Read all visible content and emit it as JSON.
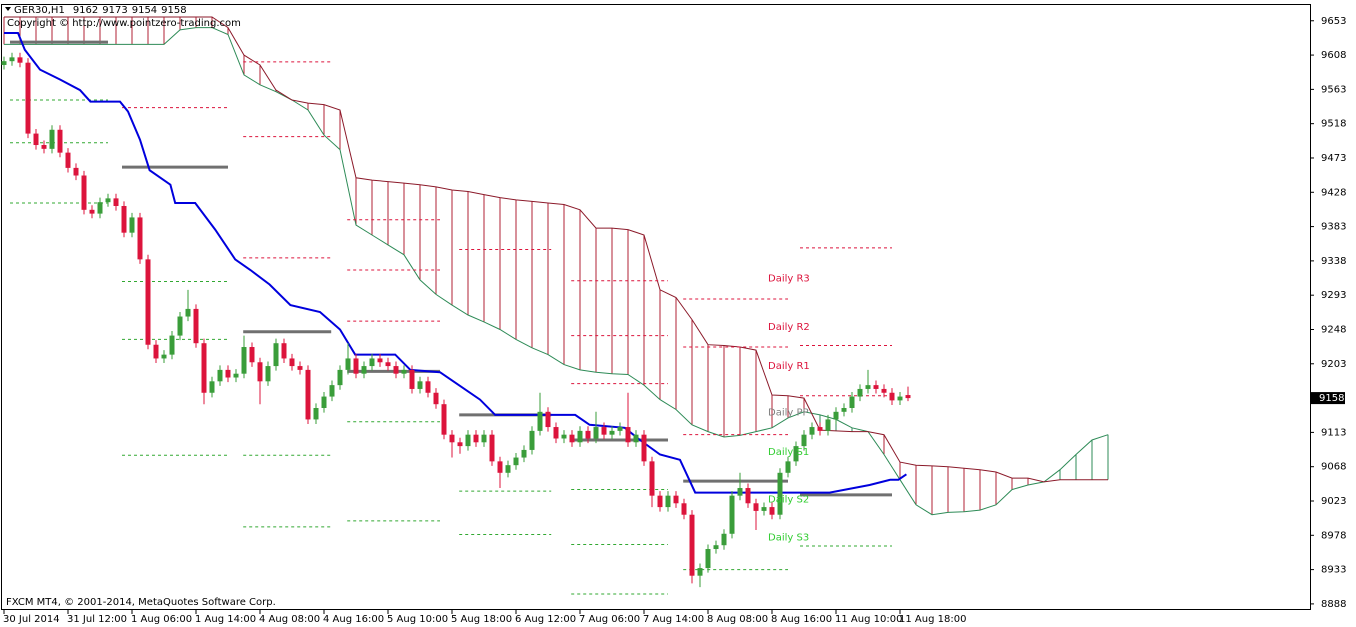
{
  "chart_data": {
    "type": "candlestick",
    "title": "GER30,H1",
    "quote": [
      9162,
      9173,
      9154,
      9158
    ],
    "copyright": "Copyright © http://www.pointzero-trading.com",
    "footer": "FXCM MT4, © 2001-2014, MetaQuotes Software Corp.",
    "price_tag": 9158,
    "ylim": [
      8880,
      9675
    ],
    "yticks": [
      9653,
      9608,
      9563,
      9518,
      9473,
      9428,
      9383,
      9338,
      9293,
      9248,
      9203,
      9113,
      9068,
      9023,
      8978,
      8933,
      8888
    ],
    "xlim": [
      -0.5,
      163.25
    ],
    "xticks": [
      {
        "value": 0,
        "label": "30 Jul 2014"
      },
      {
        "value": 8,
        "label": "31 Jul 12:00"
      },
      {
        "value": 16,
        "label": "1 Aug 06:00"
      },
      {
        "value": 24,
        "label": "1 Aug 14:00"
      },
      {
        "value": 32,
        "label": "4 Aug 08:00"
      },
      {
        "value": 40,
        "label": "4 Aug 16:00"
      },
      {
        "value": 48,
        "label": "5 Aug 10:00"
      },
      {
        "value": 56,
        "label": "5 Aug 18:00"
      },
      {
        "value": 64,
        "label": "6 Aug 12:00"
      },
      {
        "value": 72,
        "label": "7 Aug 06:00"
      },
      {
        "value": 80,
        "label": "7 Aug 14:00"
      },
      {
        "value": 88,
        "label": "8 Aug 08:00"
      },
      {
        "value": 96,
        "label": "8 Aug 16:00"
      },
      {
        "value": 104,
        "label": "11 Aug 10:00"
      },
      {
        "value": 112,
        "label": "11 Aug 18:00"
      }
    ],
    "up_color": "#3a9d3a",
    "down_color": "#dc143c",
    "open": [
      9595,
      9600,
      9605,
      9598,
      9505,
      9490,
      9485,
      9510,
      9480,
      9460,
      9450,
      9405,
      9400,
      9415,
      9420,
      9410,
      9375,
      9395,
      9340,
      9228,
      9210,
      9215,
      9240,
      9265,
      9275,
      9230,
      9165,
      9180,
      9195,
      9185,
      9190,
      9225,
      9205,
      9180,
      9200,
      9230,
      9210,
      9200,
      9195,
      9130,
      9145,
      9160,
      9175,
      9195,
      9210,
      9190,
      9200,
      9210,
      9205,
      9200,
      9190,
      9195,
      9170,
      9180,
      9165,
      9150,
      9110,
      9100,
      9095,
      9110,
      9100,
      9110,
      9075,
      9060,
      9070,
      9080,
      9090,
      9115,
      9140,
      9120,
      9105,
      9110,
      9100,
      9115,
      9105,
      9120,
      9110,
      9115,
      9120,
      9100,
      9110,
      9075,
      9030,
      9015,
      9030,
      9020,
      9005,
      8925,
      8935,
      8960,
      8965,
      8980,
      9030,
      9040,
      9020,
      9010,
      9015,
      9005,
      9060,
      9075,
      9095,
      9110,
      9120,
      9115,
      9130,
      9140,
      9145,
      9160,
      9170,
      9175,
      9170,
      9165,
      9155,
      9162
    ],
    "high": [
      9606,
      9611,
      9611,
      9604,
      9511,
      9496,
      9516,
      9516,
      9486,
      9466,
      9456,
      9411,
      9421,
      9426,
      9426,
      9416,
      9401,
      9401,
      9346,
      9234,
      9221,
      9246,
      9271,
      9300,
      9281,
      9236,
      9186,
      9201,
      9201,
      9196,
      9240,
      9231,
      9211,
      9206,
      9236,
      9236,
      9216,
      9206,
      9201,
      9151,
      9166,
      9181,
      9201,
      9230,
      9216,
      9206,
      9216,
      9216,
      9211,
      9206,
      9201,
      9201,
      9186,
      9186,
      9171,
      9156,
      9116,
      9106,
      9116,
      9116,
      9116,
      9116,
      9081,
      9076,
      9086,
      9096,
      9121,
      9165,
      9146,
      9126,
      9116,
      9116,
      9121,
      9121,
      9140,
      9126,
      9121,
      9126,
      9165,
      9116,
      9116,
      9081,
      9036,
      9036,
      9036,
      9026,
      9011,
      8941,
      8966,
      8971,
      8986,
      9036,
      9060,
      9046,
      9026,
      9021,
      9021,
      9066,
      9081,
      9101,
      9116,
      9126,
      9126,
      9136,
      9146,
      9151,
      9166,
      9176,
      9195,
      9181,
      9176,
      9171,
      9166,
      9173
    ],
    "low": [
      9589,
      9594,
      9592,
      9499,
      9484,
      9479,
      9479,
      9474,
      9454,
      9444,
      9399,
      9394,
      9394,
      9409,
      9404,
      9369,
      9369,
      9334,
      9222,
      9204,
      9204,
      9209,
      9234,
      9259,
      9224,
      9150,
      9159,
      9174,
      9179,
      9179,
      9184,
      9199,
      9150,
      9174,
      9194,
      9204,
      9194,
      9189,
      9124,
      9124,
      9139,
      9154,
      9169,
      9189,
      9184,
      9184,
      9194,
      9199,
      9194,
      9184,
      9184,
      9164,
      9164,
      9159,
      9144,
      9104,
      9080,
      9085,
      9089,
      9094,
      9094,
      9069,
      9040,
      9054,
      9064,
      9074,
      9084,
      9109,
      9114,
      9099,
      9099,
      9094,
      9094,
      9099,
      9099,
      9104,
      9104,
      9109,
      9094,
      9094,
      9069,
      9015,
      9009,
      9009,
      9014,
      8999,
      8915,
      8910,
      8929,
      8954,
      8959,
      8974,
      9024,
      9014,
      8985,
      9004,
      8999,
      8999,
      9054,
      9069,
      9089,
      9104,
      9109,
      9109,
      9124,
      9134,
      9139,
      9154,
      9164,
      9164,
      9159,
      9149,
      9149,
      9154
    ],
    "close": [
      9600,
      9605,
      9598,
      9505,
      9490,
      9485,
      9510,
      9480,
      9460,
      9450,
      9405,
      9400,
      9415,
      9420,
      9410,
      9375,
      9395,
      9340,
      9228,
      9210,
      9215,
      9240,
      9265,
      9275,
      9230,
      9165,
      9180,
      9195,
      9185,
      9190,
      9225,
      9205,
      9180,
      9200,
      9230,
      9210,
      9200,
      9195,
      9130,
      9145,
      9160,
      9175,
      9195,
      9210,
      9190,
      9200,
      9210,
      9205,
      9200,
      9190,
      9195,
      9170,
      9180,
      9165,
      9150,
      9110,
      9100,
      9095,
      9110,
      9100,
      9110,
      9075,
      9060,
      9070,
      9080,
      9090,
      9115,
      9140,
      9120,
      9105,
      9110,
      9100,
      9115,
      9105,
      9120,
      9110,
      9115,
      9120,
      9100,
      9110,
      9075,
      9030,
      9015,
      9030,
      9020,
      9005,
      8925,
      8935,
      8960,
      8965,
      8980,
      9030,
      9040,
      9020,
      9010,
      9015,
      9005,
      9060,
      9075,
      9095,
      9110,
      9120,
      9115,
      9130,
      9140,
      9145,
      9160,
      9170,
      9175,
      9170,
      9165,
      9155,
      9160,
      9158
    ],
    "cloud": {
      "x": [
        0,
        2,
        4,
        6,
        8,
        10,
        12,
        14,
        16,
        18,
        20,
        22,
        24,
        26,
        28,
        30,
        32,
        34,
        36,
        38,
        40,
        42,
        44,
        46,
        48,
        50,
        52,
        54,
        56,
        58,
        60,
        62,
        64,
        66,
        68,
        70,
        72,
        74,
        76,
        78,
        80,
        82,
        84,
        86,
        88,
        90,
        92,
        94,
        96,
        98,
        100,
        102,
        104,
        106,
        108,
        110,
        112,
        114,
        116,
        118,
        120,
        122,
        124,
        126,
        128,
        130,
        132,
        134,
        136,
        138
      ],
      "span_a": [
        9622,
        9622,
        9622,
        9622,
        9622,
        9622,
        9622,
        9622,
        9622,
        9622,
        9622,
        9641,
        9644,
        9644,
        9635,
        9582,
        9569,
        9560,
        9549,
        9536,
        9503,
        9484,
        9385,
        9372,
        9359,
        9346,
        9313,
        9294,
        9280,
        9267,
        9258,
        9248,
        9235,
        9224,
        9215,
        9202,
        9195,
        9192,
        9190,
        9189,
        9175,
        9156,
        9143,
        9123,
        9114,
        9107,
        9109,
        9114,
        9119,
        9132,
        9140,
        9136,
        9130,
        9119,
        9114,
        9084,
        9051,
        9018,
        9005,
        9008,
        9009,
        9011,
        9018,
        9038,
        9044,
        9048,
        9064,
        9084,
        9103,
        9110
      ],
      "span_b": [
        9658,
        9658,
        9658,
        9658,
        9658,
        9658,
        9658,
        9658,
        9658,
        9658,
        9658,
        9658,
        9658,
        9658,
        9644,
        9608,
        9595,
        9562,
        9549,
        9545,
        9543,
        9536,
        9447,
        9444,
        9442,
        9440,
        9438,
        9435,
        9431,
        9429,
        9425,
        9421,
        9418,
        9416,
        9414,
        9412,
        9405,
        9381,
        9381,
        9379,
        9372,
        9300,
        9290,
        9261,
        9228,
        9227,
        9225,
        9221,
        9162,
        9161,
        9158,
        9116,
        9115,
        9114,
        9114,
        9110,
        9074,
        9070,
        9069,
        9068,
        9066,
        9064,
        9061,
        9053,
        9053,
        9048,
        9051,
        9051,
        9051,
        9051
      ],
      "bear_color": "#b22234",
      "bull_color": "#2e8b57"
    },
    "kijun": {
      "color": "#0000dd",
      "x": [
        0,
        1.75,
        2.6,
        4.5,
        7,
        9.5,
        10.8,
        14.5,
        15.5,
        17,
        18.2,
        20.8,
        21.4,
        23.9,
        26.4,
        28.9,
        30.8,
        33.2,
        35.8,
        39.5,
        42,
        43.9,
        48.9,
        50.8,
        54.5,
        59.5,
        61.4,
        71.4,
        73.2,
        77.6,
        79.5,
        82,
        84.5,
        86.4,
        103.2,
        108.2,
        110.8,
        111.8,
        112.8
      ],
      "values": [
        9637,
        9637,
        9615,
        9589,
        9576,
        9562,
        9547,
        9547,
        9534,
        9497,
        9457,
        9438,
        9414,
        9414,
        9379,
        9340,
        9326,
        9307,
        9280,
        9271,
        9248,
        9215,
        9215,
        9195,
        9192,
        9156,
        9136,
        9136,
        9123,
        9119,
        9103,
        9084,
        9077,
        9034,
        9034,
        9044,
        9051,
        9051,
        9058
      ]
    },
    "pivot_color": "#707070",
    "resistance_color": "#dc143c",
    "support_color": "#32a832",
    "days": [
      {
        "x": [
          0.75,
          13
        ],
        "pivot": 9625,
        "resistance": [],
        "support": [
          9549,
          9493,
          9414
        ]
      },
      {
        "x": [
          14.75,
          28
        ],
        "pivot": 9461,
        "resistance": [
          9539
        ],
        "support": [
          9311,
          9235,
          9083
        ]
      },
      {
        "x": [
          29.9,
          40.9
        ],
        "pivot": 9245,
        "resistance": [
          9599,
          9501,
          9342
        ],
        "support": [
          9083,
          8989
        ]
      },
      {
        "x": [
          42.9,
          54.5
        ],
        "pivot": 9193,
        "resistance": [
          9392,
          9326,
          9259
        ],
        "support": [
          9127,
          8997
        ]
      },
      {
        "x": [
          56.9,
          68.4
        ],
        "pivot": 9136,
        "resistance": [
          9353
        ],
        "support": [
          9036,
          8979
        ]
      },
      {
        "x": [
          70.9,
          83
        ],
        "pivot": 9103,
        "resistance": [
          9312,
          9240,
          9177
        ],
        "support": [
          9038,
          8966,
          8901
        ]
      },
      {
        "x": [
          84.9,
          98
        ],
        "pivot": 9049,
        "resistance": [
          9288,
          9225,
          9110
        ],
        "support": [
          8933
        ]
      },
      {
        "x": [
          99.5,
          111
        ],
        "pivot": 9031,
        "resistance": [
          9355,
          9227,
          9161
        ],
        "support": [
          8964
        ]
      }
    ],
    "labels": [
      {
        "text": "Daily R3",
        "value": 9315,
        "color": "#dc143c"
      },
      {
        "text": "Daily R2",
        "value": 9251,
        "color": "#dc143c"
      },
      {
        "text": "Daily R1",
        "value": 9200,
        "color": "#dc143c"
      },
      {
        "text": "Daily PP",
        "value": 9139,
        "color": "#808080"
      },
      {
        "text": "Daily S1",
        "value": 9087,
        "color": "#32cd32"
      },
      {
        "text": "Daily S2",
        "value": 9025,
        "color": "#32cd32"
      },
      {
        "text": "Daily S3",
        "value": 8975,
        "color": "#32cd32"
      }
    ]
  }
}
